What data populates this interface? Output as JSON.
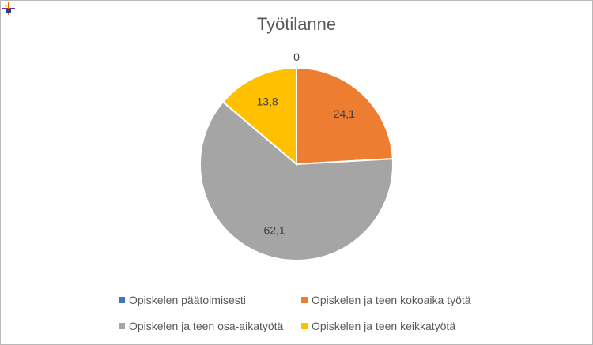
{
  "chart_data": {
    "type": "pie",
    "title": "Työtilanne",
    "categories": [
      "Opiskelen päätoimisesti",
      "Opiskelen ja teen kokoaika työtä",
      "Opiskelen ja teen osa-aikatyötä",
      "Opiskelen ja teen keikkatyötä"
    ],
    "values": [
      0,
      24.1,
      62.1,
      13.8
    ],
    "value_labels": [
      "0",
      "24,1",
      "62,1",
      "13,8"
    ],
    "colors": [
      "#4472c4",
      "#ed7d31",
      "#a5a5a5",
      "#ffc000"
    ],
    "legend_position": "bottom"
  }
}
